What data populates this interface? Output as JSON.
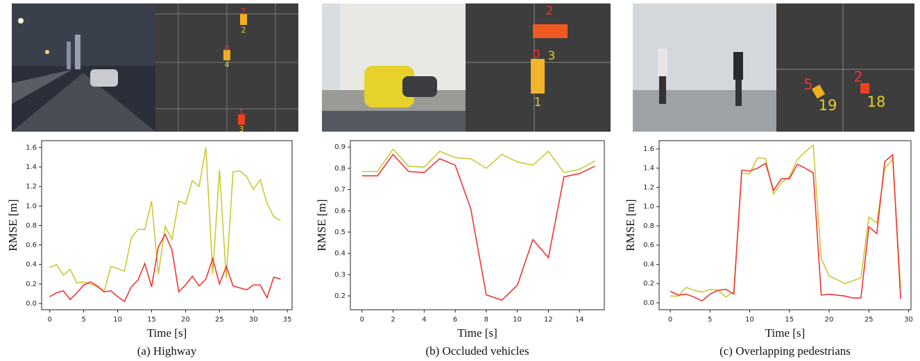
{
  "panels": [
    {
      "bev_labels": [
        "2",
        "2",
        "0",
        "4",
        "1",
        "3"
      ]
    },
    {
      "bev_labels": [
        "2",
        "0",
        "3",
        "1"
      ]
    },
    {
      "bev_labels": [
        "5",
        "19",
        "2",
        "18"
      ]
    }
  ],
  "chart_data": [
    {
      "type": "line",
      "caption": "(a) Highway",
      "xlabel": "Time [s]",
      "ylabel": "RMSE [m]",
      "x": [
        0,
        1,
        2,
        3,
        4,
        5,
        6,
        7,
        8,
        9,
        10,
        11,
        12,
        13,
        14,
        15,
        16,
        17,
        18,
        19,
        20,
        21,
        22,
        23,
        24,
        25,
        26,
        27,
        28,
        29,
        30,
        31,
        32,
        33,
        34
      ],
      "series": [
        {
          "color": "#c9c936",
          "values": [
            0.37,
            0.4,
            0.29,
            0.35,
            0.21,
            0.22,
            0.2,
            0.17,
            0.12,
            0.38,
            0.36,
            0.33,
            0.67,
            0.76,
            0.76,
            1.05,
            0.3,
            0.79,
            0.66,
            1.05,
            1.02,
            1.26,
            1.2,
            1.6,
            0.3,
            1.37,
            0.26,
            1.35,
            1.36,
            1.3,
            1.17,
            1.27,
            1.03,
            0.89,
            0.85
          ]
        },
        {
          "color": "#f03434",
          "values": [
            0.07,
            0.11,
            0.13,
            0.04,
            0.11,
            0.19,
            0.22,
            0.18,
            0.12,
            0.13,
            0.07,
            0.02,
            0.17,
            0.24,
            0.41,
            0.17,
            0.58,
            0.71,
            0.55,
            0.12,
            0.19,
            0.28,
            0.18,
            0.25,
            0.46,
            0.2,
            0.38,
            0.18,
            0.16,
            0.14,
            0.19,
            0.19,
            0.06,
            0.27,
            0.25
          ]
        }
      ],
      "xlim": [
        -1.2,
        35.7
      ],
      "xticks": [
        0,
        5,
        10,
        15,
        20,
        25,
        30,
        35
      ],
      "ylim": [
        -0.064,
        1.67
      ],
      "yticks": [
        {
          "value": 0,
          "label": "0.0"
        },
        0.2,
        0.4,
        0.6,
        0.8,
        {
          "value": 1,
          "label": "1.0"
        },
        1.2,
        1.4,
        1.6
      ]
    },
    {
      "type": "line",
      "caption": "(b) Occluded vehicles",
      "xlabel": "Time [s]",
      "ylabel": "RMSE [m]",
      "x": [
        0,
        1,
        2,
        3,
        4,
        5,
        6,
        7,
        8,
        9,
        10,
        11,
        12,
        13,
        14,
        15
      ],
      "series": [
        {
          "color": "#c9c936",
          "values": [
            0.785,
            0.785,
            0.89,
            0.81,
            0.805,
            0.88,
            0.85,
            0.845,
            0.8,
            0.865,
            0.83,
            0.815,
            0.88,
            0.78,
            0.795,
            0.835
          ]
        },
        {
          "color": "#f03434",
          "values": [
            0.765,
            0.765,
            0.865,
            0.785,
            0.78,
            0.845,
            0.815,
            0.61,
            0.205,
            0.18,
            0.25,
            0.465,
            0.38,
            0.76,
            0.775,
            0.81
          ]
        }
      ],
      "xlim": [
        -0.75,
        15.6
      ],
      "xticks": [
        0,
        2,
        4,
        6,
        8,
        10,
        12,
        14
      ],
      "ylim": [
        0.135,
        0.93
      ],
      "yticks": [
        0.2,
        0.3,
        0.4,
        0.5,
        0.6,
        0.7,
        0.8,
        0.9
      ]
    },
    {
      "type": "line",
      "caption": "(c) Overlapping pedestrians",
      "xlabel": "Time [s]",
      "ylabel": "RMSE [m]",
      "x": [
        0,
        1,
        2,
        3,
        4,
        5,
        6,
        7,
        8,
        9,
        10,
        11,
        12,
        13,
        14,
        15,
        16,
        17,
        18,
        19,
        20,
        21,
        22,
        23,
        24,
        25,
        26,
        27,
        28,
        29
      ],
      "series": [
        {
          "color": "#c9c936",
          "values": [
            0.07,
            0.07,
            0.16,
            0.13,
            0.11,
            0.14,
            0.13,
            0.06,
            0.12,
            1.35,
            1.34,
            1.51,
            1.5,
            1.13,
            1.25,
            1.31,
            1.49,
            1.57,
            1.64,
            0.46,
            0.28,
            0.24,
            0.2,
            0.23,
            0.26,
            0.89,
            0.83,
            1.4,
            1.49,
            0.15
          ]
        },
        {
          "color": "#f03434",
          "values": [
            0.12,
            0.08,
            0.09,
            0.06,
            0.02,
            0.09,
            0.13,
            0.14,
            0.09,
            1.38,
            1.37,
            1.4,
            1.45,
            1.17,
            1.29,
            1.29,
            1.44,
            1.4,
            1.35,
            0.08,
            0.09,
            0.08,
            0.07,
            0.05,
            0.05,
            0.79,
            0.72,
            1.47,
            1.54,
            0.04
          ]
        }
      ],
      "xlim": [
        -1.4,
        30.3
      ],
      "xticks": [
        0,
        5,
        10,
        15,
        20,
        25,
        30
      ],
      "ylim": [
        -0.072,
        1.686
      ],
      "yticks": [
        {
          "value": 0,
          "label": "0.0"
        },
        0.2,
        0.4,
        0.6,
        0.8,
        {
          "value": 1,
          "label": "1.0"
        },
        1.2,
        1.4,
        1.6
      ]
    }
  ]
}
